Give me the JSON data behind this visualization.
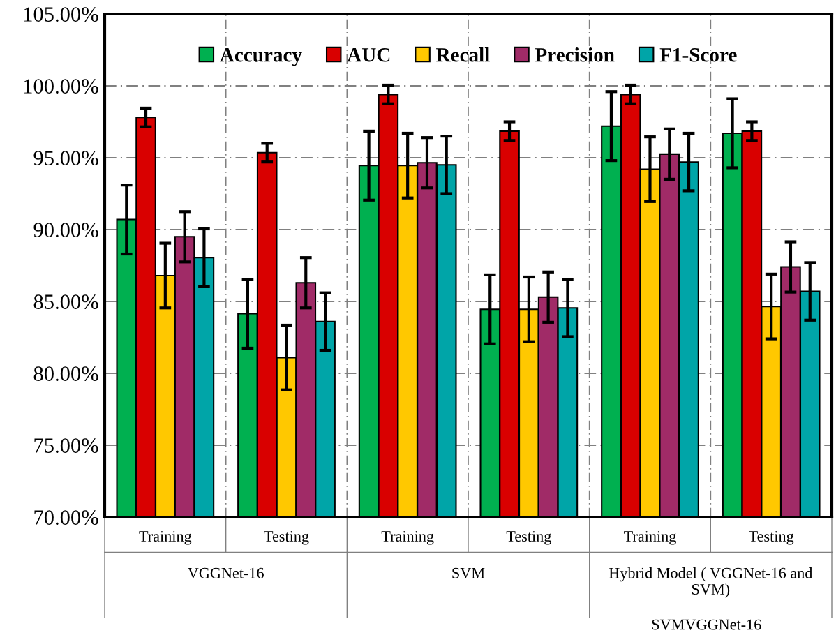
{
  "chart_data": {
    "type": "bar",
    "categories": [
      "Training",
      "Testing",
      "Training",
      "Testing",
      "Training",
      "Testing"
    ],
    "series": [
      {
        "name": "Accuracy",
        "color": "#00b050",
        "values": [
          90.7,
          84.15,
          94.45,
          84.45,
          97.2,
          96.7
        ],
        "errors": [
          2.4,
          2.4,
          2.4,
          2.4,
          2.4,
          2.4
        ]
      },
      {
        "name": "AUC",
        "color": "#d90000",
        "values": [
          97.8,
          95.35,
          99.4,
          96.85,
          99.4,
          96.85
        ],
        "errors": [
          0.65,
          0.65,
          0.65,
          0.65,
          0.65,
          0.65
        ]
      },
      {
        "name": "Recall",
        "color": "#ffc800",
        "values": [
          86.8,
          81.1,
          94.45,
          84.45,
          94.2,
          84.65
        ],
        "errors": [
          2.25,
          2.25,
          2.25,
          2.25,
          2.25,
          2.25
        ]
      },
      {
        "name": "Precision",
        "color": "#a02b67",
        "values": [
          89.5,
          86.3,
          94.65,
          85.3,
          95.25,
          87.4
        ],
        "errors": [
          1.75,
          1.75,
          1.75,
          1.75,
          1.75,
          1.75
        ]
      },
      {
        "name": "F1-Score",
        "color": "#00a5a8",
        "values": [
          88.05,
          83.6,
          94.5,
          84.55,
          94.7,
          85.7
        ],
        "errors": [
          2.0,
          2.0,
          2.0,
          2.0,
          2.0,
          2.0
        ]
      }
    ],
    "ylim": [
      70,
      105
    ],
    "yticks": [
      {
        "value": 70,
        "label": "70.00%"
      },
      {
        "value": 75,
        "label": "75.00%"
      },
      {
        "value": 80,
        "label": "80.00%"
      },
      {
        "value": 85,
        "label": "85.00%"
      },
      {
        "value": 90,
        "label": "90.00%"
      },
      {
        "value": 95,
        "label": "95.00%"
      },
      {
        "value": 100,
        "label": "100.00%"
      },
      {
        "value": 105,
        "label": "105.00%"
      }
    ],
    "annotations": [
      "VGGNet-16",
      "SVM",
      "Hybrid Model ( VGGNet-16 and\nSVM)",
      "SVMVGGNet-16"
    ],
    "grid": true,
    "legend": "top"
  }
}
